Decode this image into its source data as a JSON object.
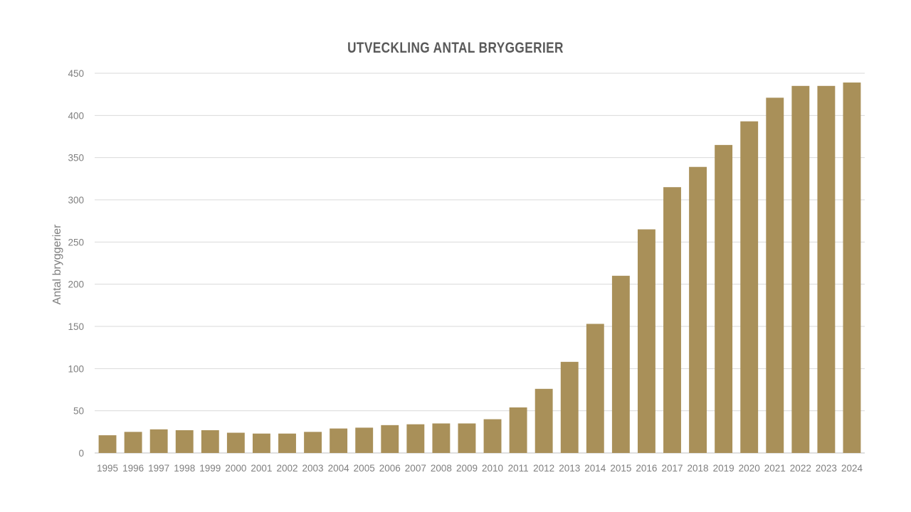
{
  "chart_data": {
    "type": "bar",
    "title": "UTVECKLING ANTAL BRYGGERIER",
    "xlabel": "",
    "ylabel": "Antal bryggerier",
    "ylim": [
      0,
      450
    ],
    "yticks": [
      0,
      50,
      100,
      150,
      200,
      250,
      300,
      350,
      400,
      450
    ],
    "grid": true,
    "legend": "none",
    "bar_color": "#A99059",
    "categories": [
      "1995",
      "1996",
      "1997",
      "1998",
      "1999",
      "2000",
      "2001",
      "2002",
      "2003",
      "2004",
      "2005",
      "2006",
      "2007",
      "2008",
      "2009",
      "2010",
      "2011",
      "2012",
      "2013",
      "2014",
      "2015",
      "2016",
      "2017",
      "2018",
      "2019",
      "2020",
      "2021",
      "2022",
      "2023",
      "2024"
    ],
    "values": [
      21,
      25,
      28,
      27,
      27,
      24,
      23,
      23,
      25,
      29,
      30,
      33,
      34,
      35,
      35,
      40,
      54,
      76,
      108,
      153,
      210,
      265,
      315,
      339,
      365,
      393,
      421,
      435,
      435,
      439
    ]
  }
}
